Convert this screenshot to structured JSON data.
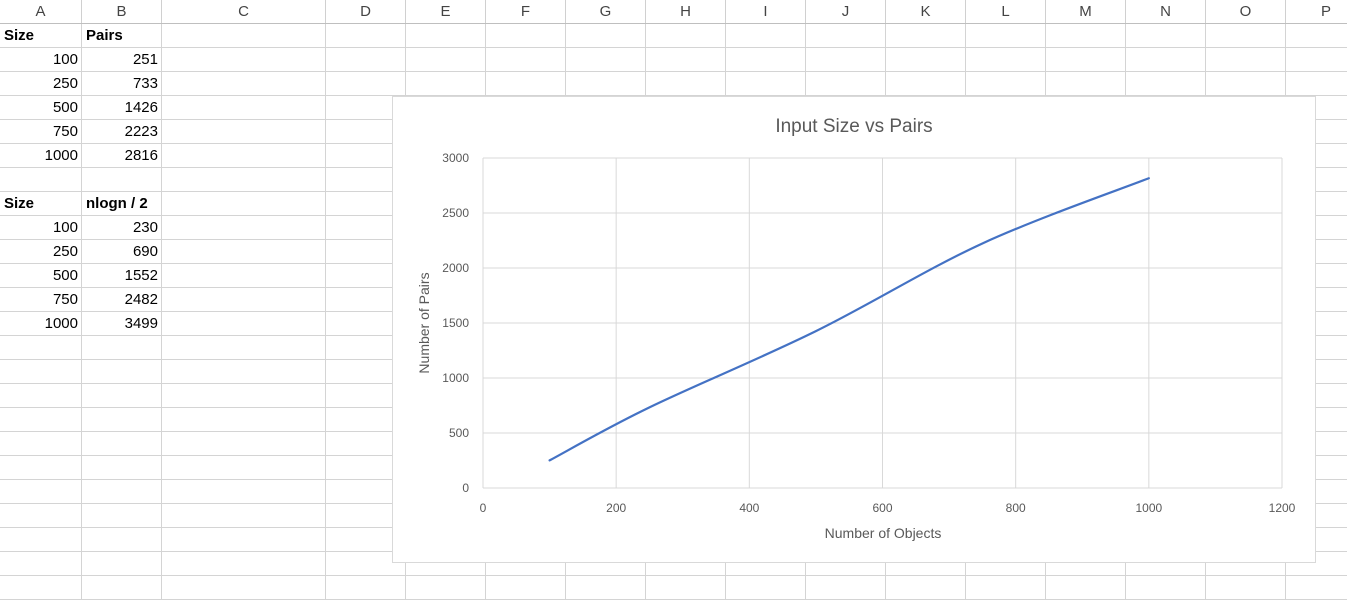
{
  "sheet": {
    "columns": [
      "A",
      "B",
      "C",
      "D",
      "E",
      "F",
      "G",
      "H",
      "I",
      "J",
      "K",
      "L",
      "M",
      "N",
      "O",
      "P"
    ],
    "table1": {
      "header": [
        "Size",
        "Pairs"
      ],
      "rows": [
        [
          "100",
          "251"
        ],
        [
          "250",
          "733"
        ],
        [
          "500",
          "1426"
        ],
        [
          "750",
          "2223"
        ],
        [
          "1000",
          "2816"
        ]
      ]
    },
    "table2": {
      "header": [
        "Size",
        "nlogn / 2"
      ],
      "rows": [
        [
          "100",
          "230"
        ],
        [
          "250",
          "690"
        ],
        [
          "500",
          "1552"
        ],
        [
          "750",
          "2482"
        ],
        [
          "1000",
          "3499"
        ]
      ]
    }
  },
  "chart_data": {
    "type": "line",
    "title": "Input Size vs Pairs",
    "xlabel": "Number of Objects",
    "ylabel": "Number of Pairs",
    "xlim": [
      0,
      1200
    ],
    "ylim": [
      0,
      3000
    ],
    "xticks": [
      "0",
      "200",
      "400",
      "600",
      "800",
      "1000",
      "1200"
    ],
    "yticks": [
      "0",
      "500",
      "1000",
      "1500",
      "2000",
      "2500",
      "3000"
    ],
    "grid": true,
    "smooth": true,
    "series": [
      {
        "color": "#4472c4",
        "x": [
          100,
          250,
          500,
          750,
          1000
        ],
        "y": [
          251,
          733,
          1426,
          2223,
          2816
        ]
      }
    ]
  }
}
